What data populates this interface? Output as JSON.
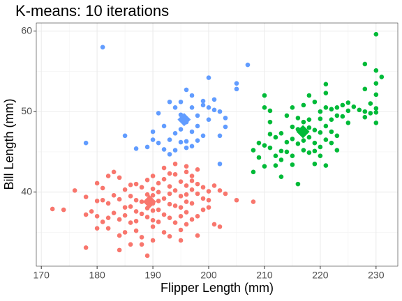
{
  "chart_data": {
    "type": "scatter",
    "title": "K-means: 10 iterations",
    "x_label": "Flipper Length (mm)",
    "y_label": "Bill Length (mm)",
    "xlim": [
      169.1,
      233.9
    ],
    "ylim": [
      30.8,
      61.0
    ],
    "xticks": [
      170,
      180,
      190,
      200,
      210,
      220,
      230
    ],
    "yticks": [
      40,
      50,
      60
    ],
    "grid": true,
    "series": [
      {
        "color": "#F8766D",
        "center": [
          189.4,
          38.8
        ],
        "x": [
          172,
          174,
          176,
          178,
          178,
          178,
          179,
          180,
          180,
          180,
          181,
          181,
          181,
          182,
          182,
          182,
          183,
          183,
          183,
          184,
          184,
          184,
          185,
          185,
          185,
          185,
          186,
          186,
          186,
          186,
          187,
          187,
          187,
          187,
          187,
          188,
          188,
          188,
          188,
          189,
          189,
          189,
          189,
          189,
          190,
          190,
          190,
          190,
          190,
          190,
          190,
          190,
          191,
          191,
          191,
          191,
          191,
          192,
          192,
          192,
          192,
          193,
          193,
          193,
          193,
          193,
          194,
          194,
          194,
          194,
          195,
          195,
          195,
          195,
          195,
          196,
          196,
          196,
          196,
          196,
          196,
          197,
          197,
          197,
          197,
          198,
          198,
          198,
          198,
          198,
          199,
          199,
          199,
          200,
          200,
          200,
          201,
          201,
          202,
          202,
          203,
          205,
          208,
          184,
          186,
          192,
          194,
          196,
          182,
          180,
          184,
          188,
          195,
          197,
          193
        ],
        "y": [
          37.9,
          37.8,
          40.2,
          39.4,
          37.2,
          33.1,
          37.6,
          41.1,
          38.9,
          37.0,
          39.0,
          40.5,
          36.3,
          42.0,
          38.6,
          35.5,
          42.5,
          39.6,
          37.4,
          39.1,
          36.6,
          34.6,
          40.3,
          38.1,
          37.1,
          35.0,
          39.5,
          38.2,
          36.2,
          33.5,
          41.0,
          39.0,
          37.6,
          36.4,
          35.2,
          40.6,
          38.8,
          37.3,
          34.4,
          41.5,
          39.7,
          38.0,
          36.9,
          32.1,
          42.0,
          40.4,
          39.6,
          38.6,
          37.7,
          36.5,
          35.7,
          34.0,
          41.1,
          40.0,
          38.9,
          37.8,
          36.3,
          39.2,
          41.6,
          37.2,
          35.0,
          40.7,
          39.8,
          38.5,
          36.8,
          34.5,
          42.2,
          40.2,
          38.3,
          36.2,
          41.3,
          39.5,
          38.1,
          37.0,
          35.3,
          42.5,
          40.8,
          39.7,
          38.8,
          37.5,
          36.0,
          41.4,
          40.3,
          38.6,
          36.6,
          42.8,
          41.0,
          39.8,
          37.0,
          34.6,
          40.6,
          39.2,
          37.8,
          40.1,
          39.0,
          38.1,
          40.8,
          36.0,
          40.2,
          35.7,
          39.8,
          39.0,
          38.8,
          41.8,
          40.9,
          43.0,
          43.5,
          43.2,
          36.8,
          35.5,
          32.8,
          33.5,
          34.0,
          42.0,
          42.3
        ]
      },
      {
        "color": "#619CFF",
        "center": [
          195.6,
          49.0
        ],
        "x": [
          178,
          181,
          185,
          187,
          189,
          190,
          190,
          191,
          191,
          192,
          193,
          193,
          194,
          194,
          194,
          195,
          195,
          195,
          195,
          196,
          196,
          196,
          196,
          197,
          197,
          197,
          197,
          198,
          198,
          198,
          199,
          199,
          199,
          200,
          200,
          201,
          201,
          202,
          202,
          202,
          203,
          203,
          205,
          205,
          207,
          200,
          193,
          192
        ],
        "y": [
          46.1,
          58.0,
          47.0,
          45.4,
          45.6,
          46.5,
          47.5,
          49.8,
          46.1,
          45.3,
          44.7,
          46.5,
          47.3,
          50.5,
          45.2,
          46.2,
          49.6,
          47.8,
          51.2,
          48.7,
          45.5,
          46.3,
          52.7,
          52.0,
          47.5,
          50.5,
          45.7,
          49.5,
          46.4,
          48.2,
          51.3,
          50.8,
          47.0,
          50.5,
          49.0,
          50.2,
          51.5,
          50.0,
          43.5,
          47.0,
          49.2,
          48.1,
          53.5,
          52.8,
          55.8,
          54.2,
          51.2,
          48.2
        ]
      },
      {
        "color": "#00BA38",
        "center": [
          216.9,
          47.5
        ],
        "x": [
          210,
          210,
          210,
          210,
          209,
          209,
          208,
          208,
          211,
          211,
          211,
          211,
          212,
          212,
          212,
          213,
          213,
          213,
          213,
          214,
          214,
          214,
          215,
          215,
          215,
          215,
          215,
          216,
          216,
          216,
          216,
          217,
          217,
          217,
          217,
          218,
          218,
          218,
          218,
          219,
          219,
          219,
          219,
          220,
          220,
          220,
          220,
          220,
          221,
          221,
          221,
          221,
          221,
          222,
          222,
          222,
          222,
          223,
          223,
          223,
          223,
          224,
          224,
          225,
          225,
          225,
          226,
          227,
          228,
          228,
          228,
          228,
          229,
          229,
          230,
          230,
          230,
          230,
          230,
          230,
          230,
          231,
          221,
          218,
          219
        ],
        "y": [
          52.0,
          50.5,
          45.8,
          43.2,
          46.1,
          44.3,
          45.2,
          42.5,
          50.1,
          48.7,
          47.2,
          45.5,
          46.8,
          44.5,
          43.3,
          47.3,
          45.1,
          44.0,
          41.9,
          49.5,
          46.2,
          45.0,
          50.5,
          48.1,
          46.6,
          44.5,
          43.4,
          49.2,
          47.8,
          46.0,
          41.0,
          50.8,
          48.7,
          46.4,
          45.2,
          52.0,
          48.0,
          46.8,
          44.9,
          51.2,
          47.7,
          46.1,
          43.5,
          50.0,
          49.1,
          47.4,
          45.6,
          44.5,
          52.3,
          50.5,
          48.2,
          46.5,
          43.3,
          50.3,
          49.0,
          47.5,
          46.1,
          50.5,
          49.5,
          47.0,
          45.2,
          50.8,
          49.4,
          51.1,
          50.1,
          48.6,
          50.6,
          50.2,
          55.9,
          52.8,
          49.3,
          50.0,
          51.0,
          49.8,
          59.6,
          55.1,
          53.5,
          52.1,
          50.4,
          49.9,
          48.6,
          54.3,
          53.4,
          49.0,
          45.1
        ]
      }
    ]
  }
}
